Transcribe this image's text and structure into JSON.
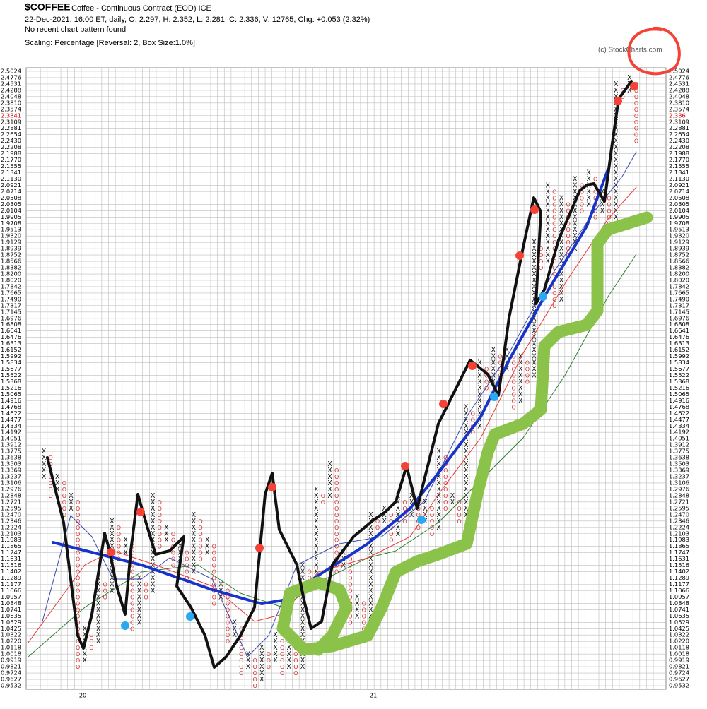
{
  "chart_data": {
    "type": "point-and-figure",
    "symbol": "$COFFEE",
    "title": "Coffee - Continuous Contract (EOD)  ICE",
    "subtitle": "22-Dec-2021, 16:00 ET, daily, O: 2.297, H: 2.352, L: 2.281, C: 2.336, V: 12765, Chg: +0.053 (2.32%)",
    "pattern_note": "No recent chart pattern found",
    "scaling": "Scaling: Percentage [Reversal: 2, Box Size:1.0%]",
    "credit": "(c) StockCharts.com",
    "last_price": 2.336,
    "xlabels": [
      "20",
      "21"
    ],
    "ylim": [
      0.9532,
      2.5024
    ],
    "yticks": [
      0.9532,
      0.9627,
      0.9724,
      0.9821,
      0.9919,
      1.0018,
      1.0118,
      {
        "value": 1.022,
        "label": "1.0220"
      },
      1.0322,
      1.0425,
      1.0529,
      1.0635,
      1.0741,
      1.0848,
      1.0957,
      1.1066,
      1.1177,
      1.1289,
      1.1402,
      1.1516,
      1.1631,
      1.1747,
      1.1865,
      1.1983,
      1.2103,
      1.2224,
      1.2346,
      {
        "value": 1.247,
        "label": "1.2470"
      },
      1.2595,
      1.2721,
      1.2848,
      1.2976,
      1.3106,
      1.3237,
      1.3369,
      1.3503,
      1.3638,
      1.3775,
      1.3912,
      1.4051,
      1.4192,
      1.4334,
      1.4477,
      1.4622,
      1.4768,
      1.4916,
      1.5065,
      1.5216,
      1.5368,
      1.5522,
      1.5677,
      1.5834,
      1.5992,
      1.6152,
      1.6313,
      1.6476,
      1.6641,
      1.6808,
      1.6976,
      1.7145,
      1.7317,
      {
        "value": 1.749,
        "label": "1.7490"
      },
      1.7665,
      1.7842,
      {
        "value": 1.802,
        "label": "1.8020"
      },
      {
        "value": 1.82,
        "label": "1.8200"
      },
      1.8382,
      1.8566,
      1.8752,
      1.8939,
      1.9129,
      {
        "value": 1.932,
        "label": "1.9320"
      },
      1.9513,
      1.9708,
      1.9905,
      2.0104,
      2.0305,
      2.0508,
      2.0714,
      2.0921,
      {
        "value": 2.113,
        "label": "2.1130"
      },
      2.1341,
      2.1555,
      {
        "value": 2.177,
        "label": "2.1770"
      },
      2.1988,
      2.2208,
      {
        "value": 2.243,
        "label": "2.2430"
      },
      2.2654,
      2.2881,
      2.3109,
      2.3341,
      2.3574,
      {
        "value": 2.381,
        "label": "2.3810"
      },
      2.4048,
      2.4288,
      2.4531,
      2.4776,
      2.5024
    ],
    "current_tick": 2.3341,
    "columns": [
      [
        "X",
        1.3237,
        1.3775
      ],
      [
        "O",
        1.2848,
        1.3638
      ],
      [
        "X",
        1.2976,
        1.3237
      ],
      [
        "O",
        1.247,
        1.3106
      ],
      [
        "X",
        1.2595,
        1.2848
      ],
      [
        "O",
        0.9821,
        1.2721
      ],
      [
        "X",
        0.9919,
        1.0425
      ],
      [
        "O",
        1.0118,
        1.0322
      ],
      [
        "X",
        1.022,
        1.1289
      ],
      [
        "O",
        1.0957,
        1.1177
      ],
      [
        "X",
        1.1066,
        1.2346
      ],
      [
        "O",
        1.1631,
        1.2224
      ],
      [
        "X",
        1.1747,
        1.1983
      ],
      [
        "O",
        1.0425,
        1.1865
      ],
      [
        "X",
        1.0529,
        1.1289
      ],
      [
        "O",
        1.0957,
        1.1177
      ],
      [
        "X",
        1.1066,
        1.2848
      ],
      [
        "O",
        1.1865,
        1.2721
      ],
      [
        "X",
        1.1983,
        1.2224
      ],
      [
        "O",
        1.1516,
        1.2103
      ],
      [
        "X",
        1.1631,
        1.1865
      ],
      [
        "O",
        1.1289,
        1.1747
      ],
      [
        "X",
        1.1402,
        1.247
      ],
      [
        "O",
        1.1631,
        1.2346
      ],
      [
        "X",
        1.1747,
        1.1983
      ],
      [
        "O",
        1.0848,
        1.1865
      ],
      [
        "X",
        1.0957,
        1.1177
      ],
      [
        "O",
        1.022,
        1.1066
      ],
      [
        "X",
        1.0322,
        1.0529
      ],
      [
        "O",
        0.9724,
        1.0425
      ],
      [
        "X",
        0.9821,
        1.0018
      ],
      [
        "O",
        0.9532,
        0.9919
      ],
      [
        "X",
        0.9627,
        1.0118
      ],
      [
        "O",
        0.9821,
        1.0018
      ],
      [
        "X",
        0.9919,
        1.0322
      ],
      [
        "O",
        0.9724,
        1.022
      ],
      [
        "X",
        0.9821,
        1.022
      ],
      [
        "O",
        0.9724,
        1.0118
      ],
      [
        "X",
        0.9821,
        1.1516
      ],
      [
        "O",
        1.1289,
        1.1402
      ],
      [
        "X",
        1.1402,
        1.2976
      ],
      [
        "O",
        1.2721,
        1.2848
      ],
      [
        "X",
        1.2848,
        1.3503
      ],
      [
        "O",
        1.1402,
        1.3369
      ],
      [
        "X",
        1.1516,
        1.1747
      ],
      [
        "O",
        1.0529,
        1.1631
      ],
      [
        "X",
        1.0635,
        1.0957
      ],
      [
        "O",
        1.022,
        1.0848
      ],
      [
        "X",
        1.0322,
        1.247
      ],
      [
        "O",
        1.2224,
        1.2346
      ],
      [
        "X",
        1.2346,
        1.2595
      ],
      [
        "O",
        1.1983,
        1.247
      ],
      [
        "X",
        1.2103,
        1.2848
      ],
      [
        "O",
        1.2346,
        1.2721
      ],
      [
        "X",
        1.247,
        1.2848
      ],
      [
        "O",
        1.2224,
        1.2721
      ],
      [
        "X",
        1.2346,
        1.2721
      ],
      [
        "O",
        1.2103,
        1.2595
      ],
      [
        "X",
        1.2224,
        1.3775
      ],
      [
        "O",
        1.2595,
        1.3638
      ],
      [
        "X",
        1.2721,
        1.2848
      ],
      [
        "O",
        1.2346,
        1.2721
      ],
      [
        "X",
        1.247,
        1.4768
      ],
      [
        "O",
        1.4192,
        1.4622
      ],
      [
        "X",
        1.4334,
        1.5834
      ],
      [
        "O",
        1.5216,
        1.5677
      ],
      [
        "X",
        1.5368,
        1.6152
      ],
      [
        "O",
        1.5522,
        1.5992
      ],
      [
        "X",
        1.5677,
        1.6152
      ],
      [
        "O",
        1.4768,
        1.5992
      ],
      [
        "X",
        1.4916,
        1.5992
      ],
      [
        "O",
        1.5368,
        1.5834
      ],
      [
        "X",
        1.5522,
        1.9129
      ],
      [
        "O",
        1.8382,
        1.8939
      ],
      [
        "X",
        1.8566,
        2.0921
      ],
      [
        "O",
        1.7317,
        2.0714
      ],
      [
        "X",
        1.749,
        2.0508
      ],
      [
        "O",
        1.8752,
        2.0305
      ],
      [
        "X",
        1.8939,
        2.113
      ],
      [
        "O",
        2.0104,
        2.0921
      ],
      [
        "X",
        2.0305,
        2.1341
      ],
      [
        "O",
        1.9905,
        2.113
      ],
      [
        "X",
        2.0104,
        2.0714
      ],
      [
        "O",
        1.9708,
        2.0508
      ],
      [
        "X",
        1.9905,
        2.4531
      ],
      [
        "O",
        2.4048,
        2.4288
      ],
      [
        "X",
        2.4288,
        2.4776
      ],
      [
        "O",
        2.243,
        2.4531
      ]
    ]
  }
}
